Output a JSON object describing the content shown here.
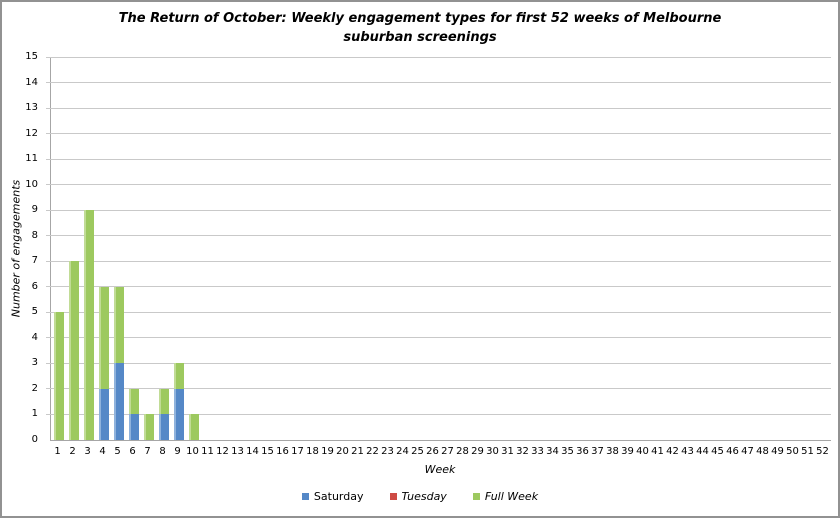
{
  "window": {
    "background": "#ffffff",
    "border_color": "#929292",
    "gridline_color": "#c9c9c9",
    "axis_line_color": "#a6a6a6"
  },
  "chart_data": {
    "type": "bar",
    "stacked": true,
    "title": "The Return of October: Weekly engagement types for first 52 weeks of Melbourne suburban screenings",
    "xlabel": "Week",
    "ylabel": "Number of engagements",
    "ylim": [
      0,
      15
    ],
    "ytick_step": 1,
    "grid": true,
    "legend_position": "bottom",
    "categories": [
      1,
      2,
      3,
      4,
      5,
      6,
      7,
      8,
      9,
      10,
      11,
      12,
      13,
      14,
      15,
      16,
      17,
      18,
      19,
      20,
      21,
      22,
      23,
      24,
      25,
      26,
      27,
      28,
      29,
      30,
      31,
      32,
      33,
      34,
      35,
      36,
      37,
      38,
      39,
      40,
      41,
      42,
      43,
      44,
      45,
      46,
      47,
      48,
      49,
      50,
      51,
      52
    ],
    "series": [
      {
        "name": "Saturday",
        "color": "#5588c7",
        "highlight": "#8fb2dc",
        "legend_italic": false,
        "values": [
          0,
          0,
          0,
          2,
          3,
          1,
          0,
          1,
          2,
          0,
          0,
          0,
          0,
          0,
          0,
          0,
          0,
          0,
          0,
          0,
          0,
          0,
          0,
          0,
          0,
          0,
          0,
          0,
          0,
          0,
          0,
          0,
          0,
          0,
          0,
          0,
          0,
          0,
          0,
          0,
          0,
          0,
          0,
          0,
          0,
          0,
          0,
          0,
          0,
          0,
          0,
          0
        ]
      },
      {
        "name": "Tuesday",
        "color": "#ce4b44",
        "highlight": "#e0908a",
        "legend_italic": true,
        "values": [
          0,
          0,
          0,
          0,
          0,
          0,
          0,
          0,
          0,
          0,
          0,
          0,
          0,
          0,
          0,
          0,
          0,
          0,
          0,
          0,
          0,
          0,
          0,
          0,
          0,
          0,
          0,
          0,
          0,
          0,
          0,
          0,
          0,
          0,
          0,
          0,
          0,
          0,
          0,
          0,
          0,
          0,
          0,
          0,
          0,
          0,
          0,
          0,
          0,
          0,
          0,
          0
        ]
      },
      {
        "name": "Full Week",
        "color": "#9dc95f",
        "highlight": "#c1dc96",
        "legend_italic": true,
        "values": [
          5,
          7,
          9,
          4,
          3,
          1,
          1,
          1,
          1,
          1,
          0,
          0,
          0,
          0,
          0,
          0,
          0,
          0,
          0,
          0,
          0,
          0,
          0,
          0,
          0,
          0,
          0,
          0,
          0,
          0,
          0,
          0,
          0,
          0,
          0,
          0,
          0,
          0,
          0,
          0,
          0,
          0,
          0,
          0,
          0,
          0,
          0,
          0,
          0,
          0,
          0,
          0
        ]
      }
    ]
  }
}
